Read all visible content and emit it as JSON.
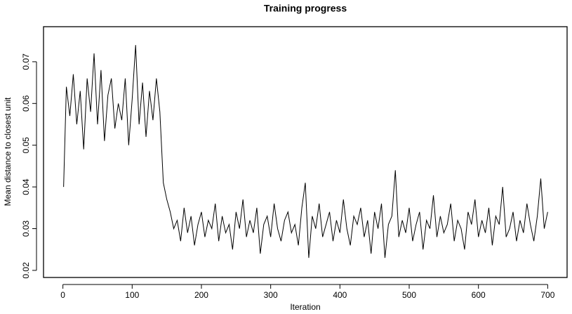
{
  "chart_data": {
    "type": "line",
    "title": "Training progress",
    "x_label": "Iteration",
    "y_label": "Mean distance to closest unit",
    "x": [
      1,
      5,
      10,
      15,
      20,
      25,
      30,
      35,
      40,
      45,
      50,
      55,
      60,
      65,
      70,
      75,
      80,
      85,
      90,
      95,
      100,
      105,
      110,
      115,
      120,
      125,
      130,
      135,
      140,
      145,
      150,
      155,
      160,
      165,
      170,
      175,
      180,
      185,
      190,
      195,
      200,
      205,
      210,
      215,
      220,
      225,
      230,
      235,
      240,
      245,
      250,
      255,
      260,
      265,
      270,
      275,
      280,
      285,
      290,
      295,
      300,
      305,
      310,
      315,
      320,
      325,
      330,
      335,
      340,
      345,
      350,
      355,
      360,
      365,
      370,
      375,
      380,
      385,
      390,
      395,
      400,
      405,
      410,
      415,
      420,
      425,
      430,
      435,
      440,
      445,
      450,
      455,
      460,
      465,
      470,
      475,
      480,
      485,
      490,
      495,
      500,
      505,
      510,
      515,
      520,
      525,
      530,
      535,
      540,
      545,
      550,
      555,
      560,
      565,
      570,
      575,
      580,
      585,
      590,
      595,
      600,
      605,
      610,
      615,
      620,
      625,
      630,
      635,
      640,
      645,
      650,
      655,
      660,
      665,
      670,
      675,
      680,
      685,
      690,
      695,
      700
    ],
    "series": [
      {
        "color": "#000000",
        "values": [
          0.04,
          0.064,
          0.057,
          0.067,
          0.055,
          0.063,
          0.049,
          0.066,
          0.058,
          0.072,
          0.055,
          0.068,
          0.051,
          0.062,
          0.066,
          0.054,
          0.06,
          0.056,
          0.066,
          0.05,
          0.061,
          0.074,
          0.055,
          0.065,
          0.052,
          0.063,
          0.056,
          0.066,
          0.058,
          0.041,
          0.037,
          0.034,
          0.03,
          0.032,
          0.027,
          0.035,
          0.029,
          0.033,
          0.026,
          0.031,
          0.034,
          0.028,
          0.032,
          0.03,
          0.036,
          0.027,
          0.033,
          0.029,
          0.031,
          0.025,
          0.034,
          0.03,
          0.037,
          0.028,
          0.032,
          0.029,
          0.035,
          0.024,
          0.031,
          0.033,
          0.028,
          0.036,
          0.03,
          0.027,
          0.032,
          0.034,
          0.029,
          0.031,
          0.026,
          0.035,
          0.041,
          0.023,
          0.033,
          0.03,
          0.036,
          0.028,
          0.031,
          0.034,
          0.027,
          0.032,
          0.029,
          0.037,
          0.03,
          0.026,
          0.033,
          0.031,
          0.035,
          0.028,
          0.032,
          0.024,
          0.034,
          0.03,
          0.036,
          0.023,
          0.031,
          0.033,
          0.044,
          0.028,
          0.032,
          0.029,
          0.035,
          0.027,
          0.031,
          0.034,
          0.025,
          0.032,
          0.03,
          0.038,
          0.028,
          0.033,
          0.029,
          0.031,
          0.036,
          0.027,
          0.032,
          0.03,
          0.025,
          0.034,
          0.031,
          0.037,
          0.028,
          0.032,
          0.029,
          0.035,
          0.026,
          0.033,
          0.031,
          0.04,
          0.028,
          0.03,
          0.034,
          0.027,
          0.032,
          0.029,
          0.036,
          0.031,
          0.027,
          0.033,
          0.042,
          0.03,
          0.034
        ]
      }
    ],
    "xlim": [
      -28,
      728
    ],
    "ylim": [
      0.0183,
      0.0784
    ],
    "xticks": [
      0,
      100,
      200,
      300,
      400,
      500,
      600,
      700
    ],
    "yticks": [
      0.02,
      0.03,
      0.04,
      0.05,
      0.06,
      0.07
    ]
  }
}
